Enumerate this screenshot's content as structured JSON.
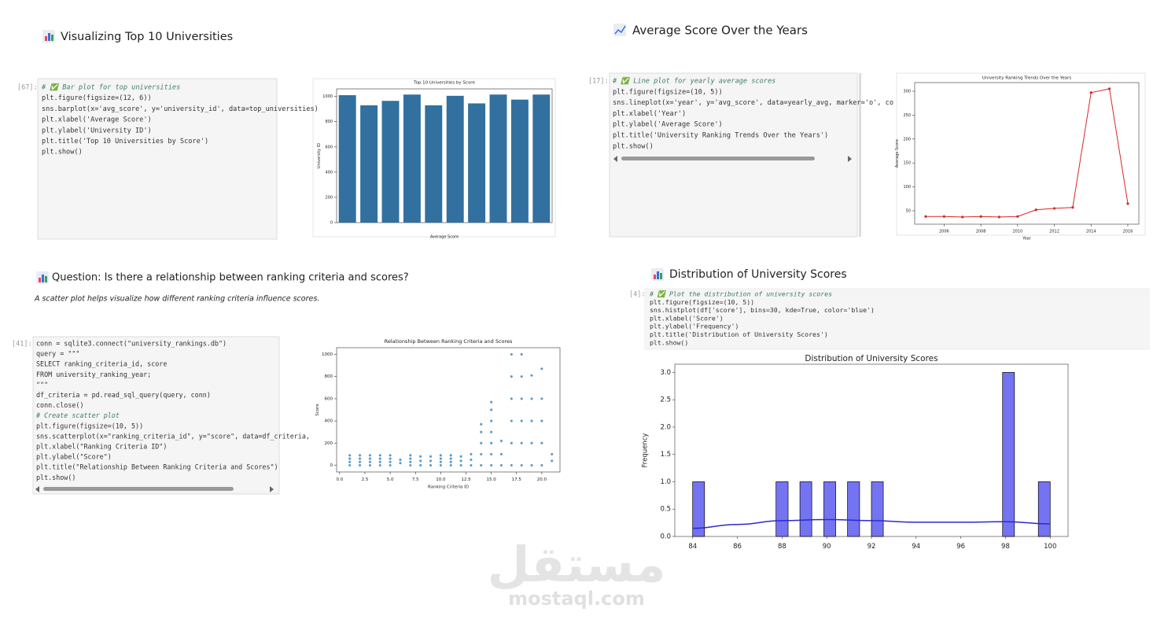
{
  "cells": [
    {
      "title": "Visualizing Top 10 Universities",
      "prompt": "[67]:",
      "code": [
        "# ✅ Bar plot for top universities",
        "plt.figure(figsize=(12, 6))",
        "sns.barplot(x='avg_score', y='university_id', data=top_universities)",
        "plt.xlabel('Average Score')",
        "plt.ylabel('University ID')",
        "plt.title('Top 10 Universities by Score')",
        "plt.show()"
      ]
    },
    {
      "title": "Average Score Over the Years",
      "prompt": "[17]:",
      "code": [
        "# ✅ Line plot for yearly average scores",
        "plt.figure(figsize=(10, 5))",
        "sns.lineplot(x='year', y='avg_score', data=yearly_avg, marker='o', co",
        "plt.xlabel('Year')",
        "plt.ylabel('Average Score')",
        "plt.title('University Ranking Trends Over the Years')",
        "plt.show()"
      ]
    },
    {
      "title": "Question: Is there a relationship between ranking criteria and scores?",
      "subtitle": "A scatter plot helps visualize how different ranking criteria influence scores.",
      "prompt": "[41]:",
      "code": [
        "conn = sqlite3.connect(\"university_rankings.db\")",
        "query = \"\"\"",
        "SELECT ranking_criteria_id, score",
        "FROM university_ranking_year;",
        "\"\"\"",
        "df_criteria = pd.read_sql_query(query, conn)",
        "conn.close()",
        "# Create scatter plot",
        "plt.figure(figsize=(10, 5))",
        "sns.scatterplot(x=\"ranking_criteria_id\", y=\"score\", data=df_criteria,",
        "plt.xlabel(\"Ranking Criteria ID\")",
        "plt.ylabel(\"Score\")",
        "plt.title(\"Relationship Between Ranking Criteria and Scores\")",
        "plt.show()"
      ]
    },
    {
      "title": "Distribution of University Scores",
      "prompt": "[4]:",
      "code": [
        "# ✅ Plot the distribution of university scores",
        "plt.figure(figsize=(10, 5))",
        "sns.histplot(df['score'], bins=30, kde=True, color='blue')",
        "plt.xlabel('Score')",
        "plt.ylabel('Frequency')",
        "plt.title('Distribution of University Scores')",
        "plt.show()"
      ]
    }
  ],
  "chart_data": [
    {
      "type": "bar",
      "title": "Top 10 Universities by Score",
      "xlabel": "Average Score",
      "ylabel": "University ID",
      "categories": [
        null,
        null,
        null,
        null,
        null,
        null,
        null,
        null,
        null,
        null
      ],
      "values": [
        1010,
        930,
        965,
        1015,
        930,
        1005,
        945,
        1015,
        975,
        1015
      ],
      "color": "#31709f",
      "ylim": [
        0,
        1060
      ],
      "yticks": [
        0,
        200,
        400,
        600,
        800,
        1000
      ]
    },
    {
      "type": "line",
      "title": "University Ranking Trends Over the Years",
      "xlabel": "Year",
      "ylabel": "Average Score",
      "x": [
        2005,
        2006,
        2007,
        2008,
        2009,
        2010,
        2011,
        2012,
        2013,
        2014,
        2015,
        2016
      ],
      "values": [
        38,
        38,
        37,
        38,
        37,
        38,
        52,
        55,
        57,
        297,
        305,
        65
      ],
      "color": "#d62728",
      "xlim": [
        2004.4,
        2016.6
      ],
      "xticks": [
        2006,
        2008,
        2010,
        2012,
        2014,
        2016
      ],
      "ylim": [
        22,
        318
      ],
      "yticks": [
        50,
        100,
        150,
        200,
        250,
        300
      ]
    },
    {
      "type": "scatter",
      "title": "Relationship Between Ranking Criteria and Scores",
      "xlabel": "Ranking Criteria ID",
      "ylabel": "Score",
      "color": "#1f77b4",
      "x": [
        1,
        1,
        1,
        1,
        2,
        2,
        2,
        2,
        3,
        3,
        3,
        3,
        4,
        4,
        4,
        4,
        5,
        5,
        5,
        5,
        6,
        6,
        7,
        7,
        7,
        7,
        8,
        8,
        8,
        9,
        9,
        9,
        10,
        10,
        10,
        10,
        11,
        11,
        11,
        11,
        12,
        12,
        12,
        13,
        13,
        13,
        14,
        14,
        14,
        14,
        14,
        15,
        15,
        15,
        15,
        15,
        15,
        15,
        16,
        16,
        16,
        17,
        17,
        17,
        17,
        17,
        17,
        18,
        18,
        18,
        18,
        18,
        18,
        19,
        19,
        19,
        19,
        19,
        20,
        20,
        20,
        20,
        20,
        21,
        21
      ],
      "values": [
        0,
        30,
        60,
        90,
        0,
        30,
        60,
        90,
        0,
        30,
        60,
        90,
        0,
        30,
        60,
        90,
        0,
        30,
        60,
        90,
        20,
        50,
        0,
        30,
        60,
        90,
        0,
        40,
        80,
        0,
        40,
        80,
        0,
        30,
        60,
        90,
        0,
        30,
        60,
        90,
        0,
        40,
        80,
        0,
        50,
        100,
        0,
        100,
        200,
        300,
        370,
        0,
        100,
        200,
        300,
        400,
        500,
        570,
        0,
        100,
        220,
        0,
        200,
        400,
        600,
        800,
        1000,
        0,
        200,
        400,
        600,
        800,
        1000,
        0,
        200,
        400,
        600,
        810,
        0,
        200,
        400,
        600,
        870,
        40,
        100
      ],
      "xlim": [
        -0.3,
        21.8
      ],
      "xticks": [
        {
          "value": 0,
          "label": "0.0"
        },
        {
          "value": 2.5,
          "label": "2.5"
        },
        {
          "value": 5,
          "label": "5.0"
        },
        {
          "value": 7.5,
          "label": "7.5"
        },
        {
          "value": 10,
          "label": "10.0"
        },
        {
          "value": 12.5,
          "label": "12.5"
        },
        {
          "value": 15,
          "label": "15.0"
        },
        {
          "value": 17.5,
          "label": "17.5"
        },
        {
          "value": 20,
          "label": "20.0"
        }
      ],
      "ylim": [
        -60,
        1060
      ],
      "yticks": [
        0,
        200,
        400,
        600,
        800,
        1000
      ]
    },
    {
      "type": "histogram",
      "title": "Distribution of University Scores",
      "ylabel": "Frequency",
      "color": "#7474f2",
      "bins": [
        84,
        84.53,
        85.07,
        85.6,
        86.13,
        86.67,
        87.2,
        87.73,
        88.27,
        88.8,
        89.33,
        89.87,
        90.4,
        90.93,
        91.47,
        92,
        92.53,
        93.07,
        93.6,
        94.13,
        94.67,
        95.2,
        95.73,
        96.27,
        96.8,
        97.33,
        97.87,
        98.4,
        98.93,
        99.47,
        100
      ],
      "values": [
        1,
        0,
        0,
        0,
        0,
        0,
        0,
        1,
        0,
        1,
        0,
        1,
        0,
        1,
        0,
        1,
        0,
        0,
        0,
        0,
        0,
        0,
        0,
        0,
        0,
        0,
        3,
        0,
        0,
        1
      ],
      "kde": {
        "color": "#2a2ad0",
        "x": [
          84,
          86,
          88,
          90,
          92,
          94,
          96,
          98,
          100
        ],
        "y": [
          0.15,
          0.22,
          0.29,
          0.31,
          0.29,
          0.26,
          0.26,
          0.27,
          0.23
        ]
      },
      "xlim": [
        83.2,
        100.8
      ],
      "xticks": [
        84,
        86,
        88,
        90,
        92,
        94,
        96,
        98,
        100
      ],
      "ylim": [
        0,
        3.15
      ],
      "yticks": [
        {
          "value": 0,
          "label": "0.0"
        },
        {
          "value": 0.5,
          "label": "0.5"
        },
        {
          "value": 1,
          "label": "1.0"
        },
        {
          "value": 1.5,
          "label": "1.5"
        },
        {
          "value": 2,
          "label": "2.0"
        },
        {
          "value": 2.5,
          "label": "2.5"
        },
        {
          "value": 3,
          "label": "3.0"
        }
      ]
    }
  ],
  "watermark": {
    "arabic": "مستقل",
    "site": "mostaql.com"
  }
}
